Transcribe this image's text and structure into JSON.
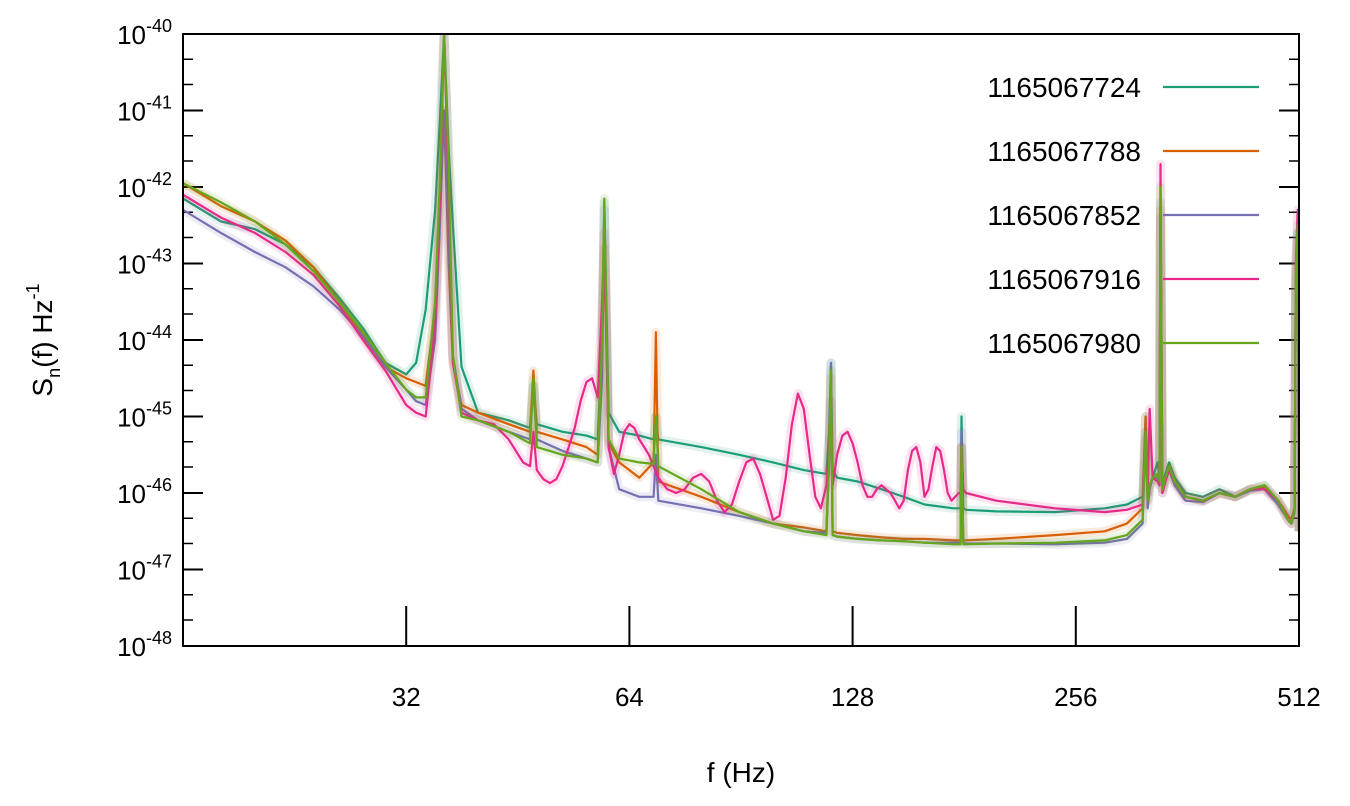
{
  "chart_data": {
    "type": "line",
    "xlabel": "f (Hz)",
    "ylabel": {
      "main": "S",
      "sub": "n",
      "mid": "(f) Hz",
      "sup": "-1"
    },
    "x_scale": "log2",
    "y_scale": "log10",
    "xlim": [
      16,
      512
    ],
    "ylim": [
      1e-48,
      1e-40
    ],
    "x_ticks": [
      {
        "value": 32,
        "label": "32"
      },
      {
        "value": 64,
        "label": "64"
      },
      {
        "value": 128,
        "label": "128"
      },
      {
        "value": 256,
        "label": "256"
      },
      {
        "value": 512,
        "label": "512"
      }
    ],
    "y_ticks": [
      {
        "exp": -40,
        "base": "10",
        "sup": "-40"
      },
      {
        "exp": -41,
        "base": "10",
        "sup": "-41"
      },
      {
        "exp": -42,
        "base": "10",
        "sup": "-42"
      },
      {
        "exp": -43,
        "base": "10",
        "sup": "-43"
      },
      {
        "exp": -44,
        "base": "10",
        "sup": "-44"
      },
      {
        "exp": -45,
        "base": "10",
        "sup": "-45"
      },
      {
        "exp": -46,
        "base": "10",
        "sup": "-46"
      },
      {
        "exp": -47,
        "base": "10",
        "sup": "-47"
      },
      {
        "exp": -48,
        "base": "10",
        "sup": "-48"
      }
    ],
    "grid": false,
    "legend_position": "top-right",
    "series": [
      {
        "name": "1165067724",
        "color": "#1b9e77",
        "x": [
          16,
          18,
          20,
          22,
          24,
          26,
          28,
          30,
          32,
          33,
          34,
          35,
          35.5,
          36,
          36.5,
          37,
          38,
          40,
          44,
          47,
          47.5,
          48,
          52,
          56,
          58,
          58.8,
          59.2,
          60,
          62,
          66,
          69,
          69.5,
          70,
          80,
          90,
          100,
          110,
          118,
          119,
          119.7,
          120.3,
          122,
          130,
          140,
          150,
          160,
          175,
          179,
          179.5,
          180.5,
          182,
          200,
          240,
          280,
          300,
          315,
          318,
          320,
          322,
          325,
          330,
          332,
          333,
          335,
          338,
          342,
          348,
          360,
          380,
          400,
          420,
          440,
          460,
          480,
          495,
          500,
          505,
          507,
          510,
          512
        ],
        "y": [
          -42.15,
          -42.45,
          -42.55,
          -42.75,
          -43.05,
          -43.45,
          -43.85,
          -44.3,
          -44.45,
          -44.3,
          -43.6,
          -42.3,
          -41.2,
          -40.0,
          -41.5,
          -42.5,
          -44.35,
          -44.95,
          -45.05,
          -45.15,
          -44.6,
          -45.1,
          -45.2,
          -45.25,
          -45.3,
          -44.0,
          -42.2,
          -44.95,
          -45.2,
          -45.25,
          -45.3,
          -45.0,
          -45.3,
          -45.4,
          -45.5,
          -45.6,
          -45.7,
          -45.75,
          -45.2,
          -44.3,
          -45.7,
          -45.8,
          -45.85,
          -45.95,
          -46.05,
          -46.15,
          -46.2,
          -46.2,
          -45.0,
          -46.2,
          -46.22,
          -46.24,
          -46.25,
          -46.2,
          -46.15,
          -46.05,
          -45.0,
          -46.0,
          -45.9,
          -45.8,
          -45.6,
          -45.8,
          -42.2,
          -45.9,
          -45.75,
          -45.6,
          -45.8,
          -46.0,
          -46.05,
          -45.95,
          -46.05,
          -45.95,
          -45.9,
          -46.1,
          -46.3,
          -46.35,
          -46.2,
          -43.2,
          -42.6,
          -46.5
        ]
      },
      {
        "name": "1165067788",
        "color": "#d95f02",
        "x": [
          16,
          18,
          20,
          22,
          24,
          26,
          28,
          30,
          32,
          33,
          34,
          35,
          35.5,
          36,
          36.5,
          37,
          38,
          40,
          44,
          47,
          47.5,
          48,
          52,
          56,
          58,
          58.8,
          59.2,
          60,
          62,
          66,
          69,
          69.5,
          70,
          80,
          90,
          100,
          110,
          118,
          119,
          119.7,
          120.3,
          122,
          130,
          140,
          150,
          160,
          175,
          179,
          179.5,
          180.5,
          182,
          200,
          240,
          280,
          300,
          315,
          318,
          320,
          322,
          325,
          330,
          332,
          333,
          335,
          338,
          342,
          348,
          360,
          380,
          400,
          420,
          440,
          460,
          480,
          495,
          500,
          505,
          507,
          510,
          512
        ],
        "y": [
          -41.95,
          -42.25,
          -42.45,
          -42.7,
          -43.05,
          -43.5,
          -43.95,
          -44.35,
          -44.5,
          -44.55,
          -44.6,
          -43.6,
          -42.3,
          -41.0,
          -43.0,
          -44.3,
          -44.85,
          -44.95,
          -45.1,
          -45.2,
          -44.4,
          -45.2,
          -45.3,
          -45.4,
          -45.5,
          -44.1,
          -42.8,
          -45.35,
          -45.6,
          -45.8,
          -45.6,
          -43.9,
          -45.85,
          -46.05,
          -46.25,
          -46.4,
          -46.45,
          -46.5,
          -45.5,
          -44.5,
          -46.5,
          -46.52,
          -46.55,
          -46.58,
          -46.6,
          -46.6,
          -46.62,
          -46.62,
          -45.4,
          -46.62,
          -46.62,
          -46.6,
          -46.55,
          -46.5,
          -46.4,
          -46.2,
          -45.0,
          -46.1,
          -45.9,
          -45.8,
          -45.75,
          -45.85,
          -42.3,
          -45.95,
          -45.8,
          -45.65,
          -45.85,
          -46.05,
          -46.1,
          -46.0,
          -46.05,
          -45.95,
          -45.92,
          -46.1,
          -46.3,
          -46.35,
          -46.2,
          -43.3,
          -42.7,
          -46.5
        ]
      },
      {
        "name": "1165067852",
        "color": "#7570b3",
        "x": [
          16,
          18,
          20,
          22,
          24,
          26,
          28,
          30,
          32,
          33,
          34,
          35,
          35.5,
          36,
          36.5,
          37,
          38,
          40,
          44,
          47,
          47.5,
          48,
          52,
          56,
          58,
          58.8,
          59.2,
          60,
          62,
          66,
          69,
          69.5,
          70,
          80,
          90,
          100,
          110,
          118,
          119,
          119.7,
          120.3,
          122,
          130,
          140,
          150,
          160,
          175,
          179,
          179.5,
          180.5,
          182,
          200,
          240,
          280,
          300,
          315,
          318,
          320,
          322,
          325,
          330,
          332,
          333,
          335,
          338,
          342,
          348,
          360,
          380,
          400,
          420,
          440,
          460,
          480,
          495,
          500,
          505,
          507,
          510,
          512
        ],
        "y": [
          -42.3,
          -42.6,
          -42.85,
          -43.05,
          -43.3,
          -43.6,
          -43.95,
          -44.35,
          -44.65,
          -44.8,
          -44.85,
          -44.0,
          -42.6,
          -41.0,
          -42.8,
          -44.2,
          -44.9,
          -45.05,
          -45.2,
          -45.3,
          -44.6,
          -45.3,
          -45.45,
          -45.55,
          -45.6,
          -44.5,
          -42.3,
          -45.4,
          -45.95,
          -46.05,
          -46.05,
          -45.5,
          -46.1,
          -46.2,
          -46.3,
          -46.4,
          -46.5,
          -46.52,
          -45.6,
          -44.3,
          -46.55,
          -46.57,
          -46.6,
          -46.62,
          -46.63,
          -46.65,
          -46.65,
          -46.65,
          -45.2,
          -46.65,
          -46.66,
          -46.66,
          -46.67,
          -46.65,
          -46.6,
          -46.4,
          -45.2,
          -46.2,
          -45.95,
          -45.8,
          -45.8,
          -45.9,
          -42.4,
          -46.0,
          -45.85,
          -45.7,
          -45.9,
          -46.1,
          -46.12,
          -46.0,
          -46.05,
          -45.97,
          -45.95,
          -46.15,
          -46.35,
          -46.4,
          -46.25,
          -43.3,
          -42.6,
          -46.5
        ]
      },
      {
        "name": "1165067916",
        "color": "#e7298a",
        "x": [
          16,
          18,
          20,
          22,
          24,
          26,
          28,
          30,
          32,
          33,
          34,
          35,
          35.5,
          36,
          36.5,
          37,
          38,
          40,
          42,
          44,
          46,
          47,
          47.5,
          48,
          49,
          50,
          51,
          52,
          53,
          54,
          55,
          56,
          57,
          58,
          58.8,
          59.2,
          60,
          61,
          62,
          63,
          64,
          65,
          66,
          67,
          68,
          69,
          70,
          72,
          74,
          76,
          78,
          80,
          82,
          84,
          86,
          88,
          90,
          92,
          94,
          96,
          98,
          100,
          102,
          104,
          106,
          108,
          110,
          112,
          114,
          116,
          118,
          119,
          119.7,
          120.3,
          122,
          124,
          126,
          128,
          130,
          132,
          134,
          136,
          138,
          140,
          142,
          144,
          146,
          148,
          150,
          152,
          154,
          156,
          158,
          160,
          162,
          164,
          166,
          168,
          170,
          172,
          174,
          176,
          178,
          179,
          179.5,
          180.5,
          182,
          200,
          240,
          280,
          300,
          315,
          318,
          320,
          322,
          325,
          330,
          332,
          333,
          335,
          338,
          342,
          348,
          360,
          380,
          400,
          420,
          440,
          460,
          480,
          495,
          500,
          505,
          507,
          510,
          512
        ],
        "y": [
          -42.1,
          -42.4,
          -42.6,
          -42.85,
          -43.15,
          -43.55,
          -44.0,
          -44.4,
          -44.85,
          -44.95,
          -45.0,
          -43.8,
          -42.3,
          -40.0,
          -42.0,
          -44.3,
          -44.95,
          -45.05,
          -45.1,
          -45.3,
          -45.6,
          -45.65,
          -45.2,
          -45.7,
          -45.82,
          -45.87,
          -45.82,
          -45.65,
          -45.4,
          -45.15,
          -44.8,
          -44.55,
          -44.5,
          -44.75,
          -43.5,
          -42.6,
          -45.4,
          -45.75,
          -45.5,
          -45.2,
          -45.1,
          -45.15,
          -45.3,
          -45.4,
          -45.5,
          -45.65,
          -45.8,
          -45.95,
          -46.0,
          -45.95,
          -45.8,
          -45.75,
          -45.85,
          -46.1,
          -46.25,
          -46.15,
          -45.85,
          -45.6,
          -45.55,
          -45.75,
          -46.05,
          -46.35,
          -46.3,
          -45.8,
          -45.1,
          -44.7,
          -44.9,
          -45.5,
          -46.05,
          -46.2,
          -45.9,
          -45.4,
          -44.8,
          -45.9,
          -45.5,
          -45.25,
          -45.2,
          -45.35,
          -45.6,
          -45.9,
          -46.05,
          -46.05,
          -45.95,
          -45.9,
          -45.95,
          -46.0,
          -46.1,
          -46.2,
          -46.1,
          -45.7,
          -45.45,
          -45.4,
          -45.6,
          -46.05,
          -45.95,
          -45.65,
          -45.4,
          -45.45,
          -45.7,
          -46.0,
          -46.1,
          -46.05,
          -46.0,
          -46.0,
          -45.4,
          -45.95,
          -46.0,
          -46.1,
          -46.2,
          -46.25,
          -46.22,
          -46.15,
          -45.3,
          -46.0,
          -44.9,
          -45.8,
          -45.85,
          -45.9,
          -41.7,
          -46.0,
          -45.85,
          -45.7,
          -45.85,
          -46.05,
          -46.1,
          -46.0,
          -46.05,
          -45.95,
          -45.95,
          -46.1,
          -46.35,
          -46.4,
          -46.2,
          -43.0,
          -42.3,
          -46.5
        ]
      },
      {
        "name": "1165067980",
        "color": "#66a61e",
        "x": [
          16,
          18,
          20,
          22,
          24,
          26,
          28,
          30,
          32,
          33,
          34,
          35,
          35.5,
          36,
          36.5,
          37,
          38,
          40,
          44,
          47,
          47.5,
          48,
          52,
          56,
          58,
          58.8,
          59.2,
          60,
          62,
          66,
          69,
          69.5,
          70,
          80,
          90,
          100,
          110,
          118,
          119,
          119.7,
          120.3,
          122,
          130,
          140,
          150,
          160,
          175,
          179,
          179.5,
          180.5,
          182,
          200,
          240,
          280,
          300,
          315,
          318,
          320,
          322,
          325,
          330,
          332,
          333,
          335,
          338,
          342,
          348,
          360,
          380,
          400,
          420,
          440,
          460,
          480,
          495,
          500,
          505,
          507,
          510,
          512
        ],
        "y": [
          -41.95,
          -42.2,
          -42.45,
          -42.75,
          -43.1,
          -43.5,
          -43.9,
          -44.3,
          -44.65,
          -44.75,
          -44.75,
          -43.5,
          -42.0,
          -40.0,
          -41.7,
          -44.2,
          -45.0,
          -45.05,
          -45.2,
          -45.35,
          -44.5,
          -45.4,
          -45.5,
          -45.55,
          -45.6,
          -44.0,
          -42.15,
          -45.3,
          -45.55,
          -45.6,
          -45.62,
          -45.0,
          -45.65,
          -45.95,
          -46.25,
          -46.4,
          -46.5,
          -46.55,
          -45.6,
          -44.4,
          -46.55,
          -46.57,
          -46.6,
          -46.62,
          -46.63,
          -46.65,
          -46.67,
          -46.67,
          -45.4,
          -46.67,
          -46.67,
          -46.66,
          -46.65,
          -46.62,
          -46.55,
          -46.35,
          -45.2,
          -46.1,
          -45.9,
          -45.8,
          -45.75,
          -45.85,
          -42.0,
          -45.95,
          -45.8,
          -45.65,
          -45.85,
          -46.05,
          -46.1,
          -46.0,
          -46.05,
          -45.95,
          -45.9,
          -46.1,
          -46.35,
          -46.4,
          -46.2,
          -43.1,
          -42.5,
          -46.5
        ]
      }
    ]
  }
}
